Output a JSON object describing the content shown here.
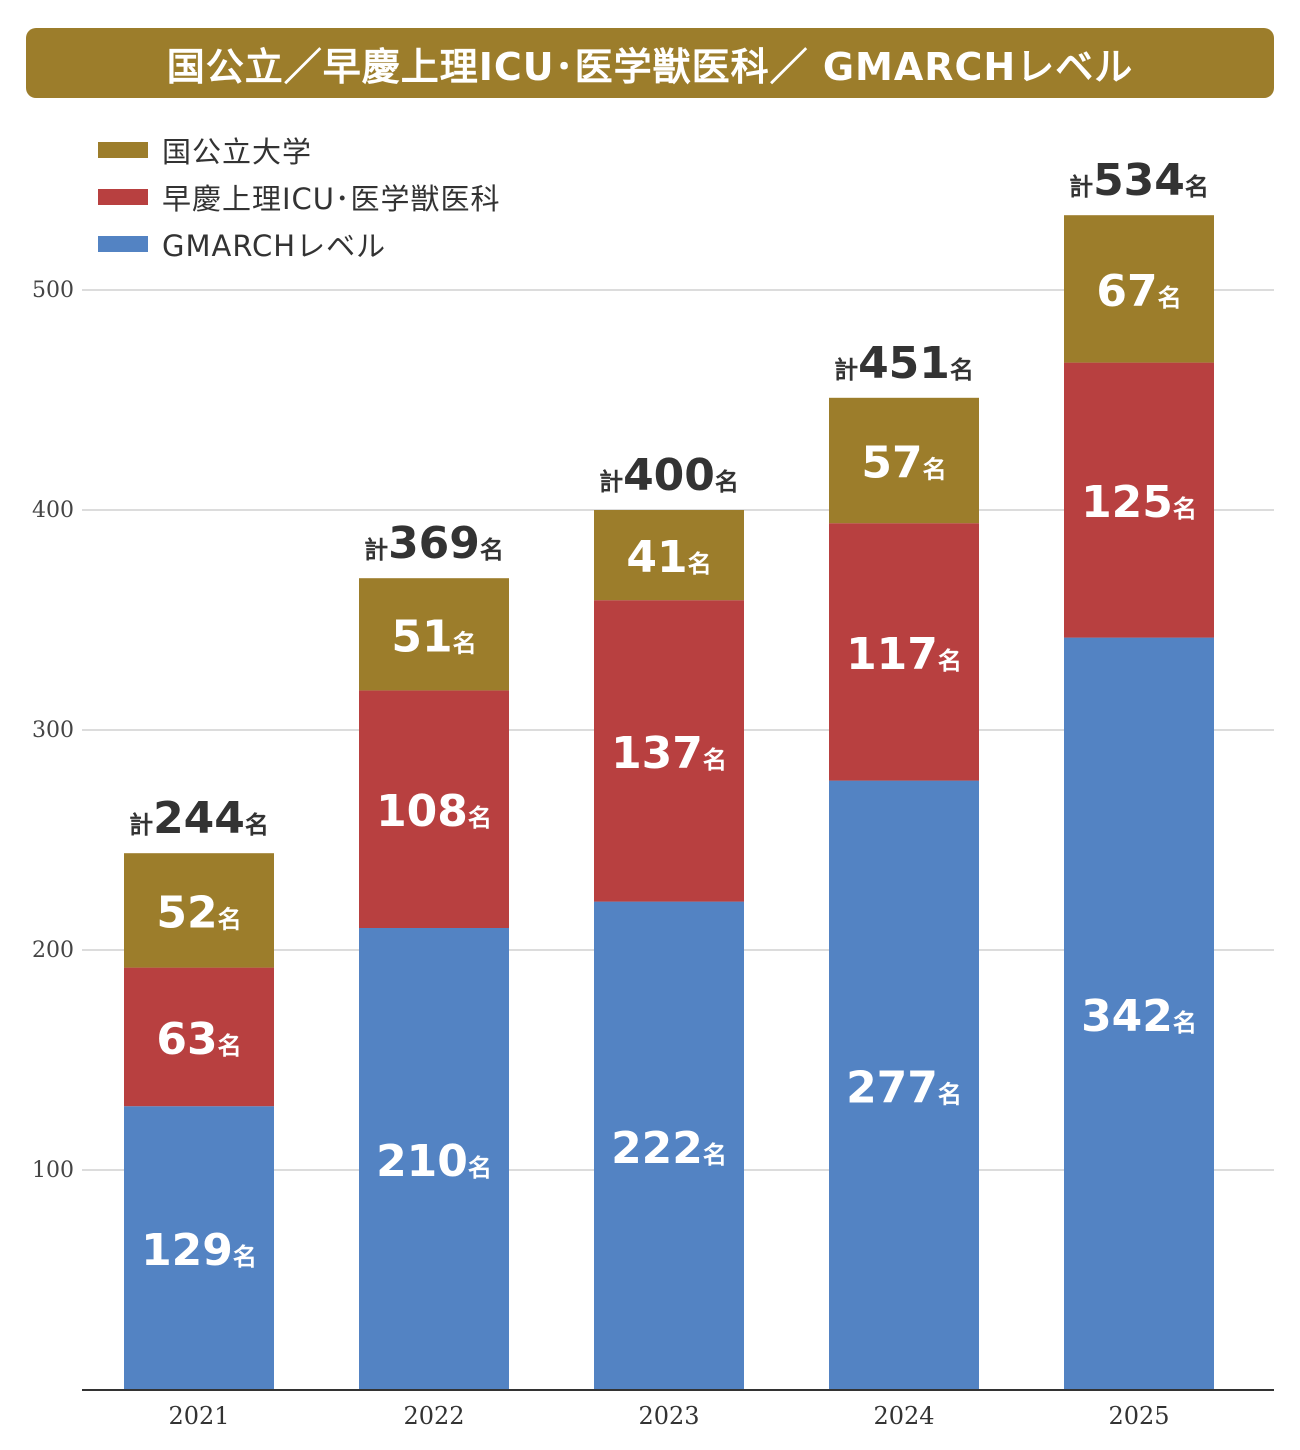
{
  "title": "国公立／早慶上理ICU･医学獣医科／ GMARCHレベル",
  "colors": {
    "title_bg": "#9c7d2b",
    "national": "#9c7d2b",
    "private_top": "#b84040",
    "gmarch": "#5383c3",
    "grid": "#c8c8c8",
    "axis": "#333333",
    "total_text": "#333333"
  },
  "legend": [
    {
      "label": "国公立大学",
      "color": "#9c7d2b"
    },
    {
      "label": "早慶上理ICU･医学獣医科",
      "color": "#b84040"
    },
    {
      "label": "GMARCHレベル",
      "color": "#5383c3"
    }
  ],
  "chart_data": {
    "type": "bar",
    "stacked": true,
    "categories": [
      "2021",
      "2022",
      "2023",
      "2024",
      "2025"
    ],
    "series": [
      {
        "name": "GMARCHレベル",
        "color": "#5383c3",
        "values": [
          129,
          210,
          222,
          277,
          342
        ]
      },
      {
        "name": "早慶上理ICU･医学獣医科",
        "color": "#b84040",
        "values": [
          63,
          108,
          137,
          117,
          125
        ]
      },
      {
        "name": "国公立大学",
        "color": "#9c7d2b",
        "values": [
          52,
          51,
          41,
          57,
          67
        ]
      }
    ],
    "totals": [
      244,
      369,
      400,
      451,
      534
    ],
    "total_prefix": "計",
    "unit": "名",
    "yticks": [
      100,
      200,
      300,
      400,
      500
    ],
    "ylim": [
      0,
      500
    ],
    "grid": true,
    "legend_position": "top-left"
  }
}
